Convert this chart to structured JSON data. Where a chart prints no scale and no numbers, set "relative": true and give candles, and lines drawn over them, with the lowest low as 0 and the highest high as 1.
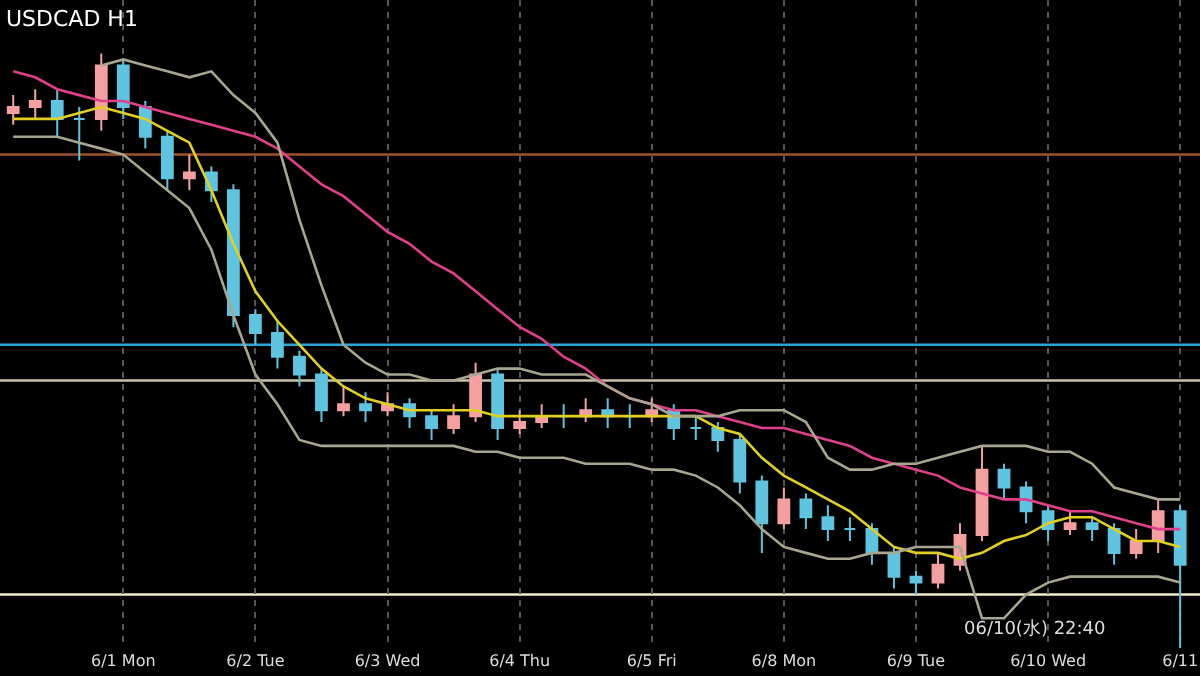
{
  "chart_data": {
    "type": "candlestick",
    "title": "USDCAD H1",
    "relative": true,
    "categories": [
      null,
      null,
      null,
      null,
      null,
      "6/1 Mon",
      null,
      null,
      null,
      null,
      null,
      "6/2 Tue",
      null,
      null,
      null,
      null,
      null,
      "6/3 Wed",
      null,
      null,
      null,
      null,
      null,
      "6/4 Thu",
      null,
      null,
      null,
      null,
      null,
      "6/5 Fri",
      null,
      null,
      null,
      null,
      null,
      "6/8 Mon",
      null,
      null,
      null,
      null,
      null,
      "6/9 Tue",
      null,
      null,
      null,
      null,
      null,
      "6/10 Wed",
      null,
      null,
      null,
      null,
      null,
      "6/11"
    ],
    "ohlc": [
      [
        0.9,
        0.93,
        0.88,
        0.91
      ],
      [
        0.91,
        0.94,
        0.89,
        0.92
      ],
      [
        0.92,
        0.94,
        0.86,
        0.89
      ],
      [
        0.89,
        0.91,
        0.82,
        0.89
      ],
      [
        0.89,
        1.0,
        0.87,
        0.98
      ],
      [
        0.98,
        0.99,
        0.89,
        0.91
      ],
      [
        0.91,
        0.92,
        0.84,
        0.86
      ],
      [
        0.86,
        0.87,
        0.77,
        0.79
      ],
      [
        0.79,
        0.83,
        0.77,
        0.8
      ],
      [
        0.8,
        0.81,
        0.75,
        0.77
      ],
      [
        0.77,
        0.78,
        0.54,
        0.56
      ],
      [
        0.56,
        0.57,
        0.51,
        0.53
      ],
      [
        0.53,
        0.55,
        0.47,
        0.49
      ],
      [
        0.49,
        0.5,
        0.44,
        0.46
      ],
      [
        0.46,
        0.47,
        0.38,
        0.4
      ],
      [
        0.4,
        0.44,
        0.39,
        0.41
      ],
      [
        0.41,
        0.43,
        0.38,
        0.4
      ],
      [
        0.4,
        0.43,
        0.39,
        0.41
      ],
      [
        0.41,
        0.42,
        0.37,
        0.39
      ],
      [
        0.39,
        0.4,
        0.35,
        0.37
      ],
      [
        0.37,
        0.41,
        0.36,
        0.39
      ],
      [
        0.39,
        0.48,
        0.38,
        0.46
      ],
      [
        0.46,
        0.47,
        0.35,
        0.37
      ],
      [
        0.37,
        0.4,
        0.36,
        0.38
      ],
      [
        0.38,
        0.41,
        0.37,
        0.39
      ],
      [
        0.39,
        0.41,
        0.37,
        0.39
      ],
      [
        0.39,
        0.42,
        0.38,
        0.4
      ],
      [
        0.4,
        0.42,
        0.37,
        0.39
      ],
      [
        0.39,
        0.41,
        0.37,
        0.39
      ],
      [
        0.39,
        0.42,
        0.38,
        0.4
      ],
      [
        0.4,
        0.41,
        0.35,
        0.37
      ],
      [
        0.37,
        0.39,
        0.35,
        0.37
      ],
      [
        0.37,
        0.38,
        0.33,
        0.35
      ],
      [
        0.35,
        0.36,
        0.26,
        0.28
      ],
      [
        0.28,
        0.29,
        0.16,
        0.21
      ],
      [
        0.21,
        0.27,
        0.2,
        0.25
      ],
      [
        0.25,
        0.26,
        0.2,
        0.22
      ],
      [
        0.22,
        0.24,
        0.18,
        0.2
      ],
      [
        0.2,
        0.22,
        0.18,
        0.2
      ],
      [
        0.2,
        0.21,
        0.14,
        0.16
      ],
      [
        0.16,
        0.17,
        0.1,
        0.12
      ],
      [
        0.12,
        0.13,
        0.09,
        0.11
      ],
      [
        0.11,
        0.16,
        0.1,
        0.14
      ],
      [
        0.14,
        0.21,
        0.13,
        0.19
      ],
      [
        0.19,
        0.34,
        0.18,
        0.3
      ],
      [
        0.3,
        0.31,
        0.25,
        0.27
      ],
      [
        0.27,
        0.28,
        0.21,
        0.23
      ],
      [
        0.23,
        0.24,
        0.18,
        0.2
      ],
      [
        0.2,
        0.23,
        0.19,
        0.21
      ],
      [
        0.21,
        0.22,
        0.18,
        0.2
      ],
      [
        0.2,
        0.21,
        0.14,
        0.16
      ],
      [
        0.16,
        0.2,
        0.15,
        0.18
      ],
      [
        0.18,
        0.25,
        0.16,
        0.23
      ],
      [
        0.23,
        0.24,
        0.0,
        0.14
      ]
    ],
    "colors": [
      "#f4a0a0",
      "#f4a0a0",
      "#5ec4e0",
      "#5ec4e0",
      "#f4a0a0",
      "#5ec4e0",
      "#5ec4e0",
      "#5ec4e0",
      "#f4a0a0",
      "#5ec4e0",
      "#5ec4e0",
      "#5ec4e0",
      "#5ec4e0",
      "#5ec4e0",
      "#5ec4e0",
      "#f4a0a0",
      "#5ec4e0",
      "#f4a0a0",
      "#5ec4e0",
      "#5ec4e0",
      "#f4a0a0",
      "#f4a0a0",
      "#5ec4e0",
      "#f4a0a0",
      "#f4a0a0",
      "#5ec4e0",
      "#f4a0a0",
      "#5ec4e0",
      "#5ec4e0",
      "#f4a0a0",
      "#5ec4e0",
      "#5ec4e0",
      "#5ec4e0",
      "#5ec4e0",
      "#5ec4e0",
      "#f4a0a0",
      "#5ec4e0",
      "#5ec4e0",
      "#5ec4e0",
      "#5ec4e0",
      "#5ec4e0",
      "#5ec4e0",
      "#f4a0a0",
      "#f4a0a0",
      "#f4a0a0",
      "#5ec4e0",
      "#5ec4e0",
      "#5ec4e0",
      "#f4a0a0",
      "#5ec4e0",
      "#5ec4e0",
      "#f4a0a0",
      "#f4a0a0",
      "#5ec4e0"
    ],
    "series": [
      {
        "type": "line",
        "color": "#e0d020",
        "values": [
          0.89,
          0.89,
          0.89,
          0.9,
          0.91,
          0.9,
          0.89,
          0.87,
          0.85,
          0.77,
          0.68,
          0.6,
          0.55,
          0.51,
          0.47,
          0.44,
          0.42,
          0.41,
          0.4,
          0.4,
          0.4,
          0.4,
          0.39,
          0.39,
          0.39,
          0.39,
          0.39,
          0.39,
          0.39,
          0.39,
          0.39,
          0.39,
          0.37,
          0.36,
          0.32,
          0.29,
          0.27,
          0.25,
          0.23,
          0.2,
          0.17,
          0.16,
          0.16,
          0.15,
          0.16,
          0.18,
          0.19,
          0.21,
          0.22,
          0.22,
          0.2,
          0.18,
          0.18,
          0.17
        ]
      },
      {
        "type": "line",
        "color": "#e0408a",
        "values": [
          0.97,
          0.96,
          0.94,
          0.93,
          0.92,
          0.92,
          0.91,
          0.9,
          0.89,
          0.88,
          0.87,
          0.86,
          0.84,
          0.81,
          0.78,
          0.76,
          0.73,
          0.7,
          0.68,
          0.65,
          0.63,
          0.6,
          0.57,
          0.54,
          0.52,
          0.49,
          0.47,
          0.44,
          0.42,
          0.41,
          0.4,
          0.4,
          0.39,
          0.38,
          0.37,
          0.37,
          0.36,
          0.35,
          0.34,
          0.32,
          0.31,
          0.3,
          0.29,
          0.27,
          0.26,
          0.25,
          0.25,
          0.24,
          0.23,
          0.23,
          0.22,
          0.21,
          0.2,
          0.2
        ]
      },
      {
        "type": "line",
        "color": "#a8a690",
        "values": [
          null,
          null,
          null,
          null,
          0.98,
          0.99,
          0.98,
          0.97,
          0.96,
          0.97,
          0.93,
          0.9,
          0.85,
          0.72,
          0.61,
          0.51,
          0.48,
          0.46,
          0.46,
          0.45,
          0.45,
          0.46,
          0.47,
          0.47,
          0.46,
          0.46,
          0.46,
          0.44,
          0.42,
          0.41,
          0.39,
          0.39,
          0.39,
          0.4,
          0.4,
          0.4,
          0.38,
          0.32,
          0.3,
          0.3,
          0.31,
          0.31,
          0.32,
          0.33,
          0.34,
          0.34,
          0.34,
          0.33,
          0.33,
          0.31,
          0.27,
          0.26,
          0.25,
          0.25
        ]
      },
      {
        "type": "line",
        "color": "#a8a690",
        "values": [
          0.86,
          0.86,
          0.86,
          0.85,
          0.84,
          0.83,
          0.8,
          0.77,
          0.74,
          0.67,
          0.56,
          0.46,
          0.41,
          0.35,
          0.34,
          0.34,
          0.34,
          0.34,
          0.34,
          0.34,
          0.34,
          0.33,
          0.33,
          0.32,
          0.32,
          0.32,
          0.31,
          0.31,
          0.31,
          0.3,
          0.3,
          0.29,
          0.27,
          0.24,
          0.2,
          0.17,
          0.16,
          0.15,
          0.15,
          0.16,
          0.16,
          0.17,
          0.17,
          0.17,
          0.05,
          0.05,
          0.09,
          0.11,
          0.12,
          0.12,
          0.12,
          0.12,
          0.12,
          0.11
        ]
      }
    ],
    "grid": "x",
    "ref_lines": [
      {
        "axis": "y",
        "value": 0.83,
        "color": "#a0522d"
      },
      {
        "axis": "y",
        "value": 0.51,
        "color": "#29a7d8"
      },
      {
        "axis": "y",
        "value": 0.45,
        "color": "#c8c3a8"
      },
      {
        "axis": "y",
        "value": 0.09,
        "color": "#f0ecd0"
      }
    ],
    "annotations": [
      "06/10(水) 22:40"
    ]
  }
}
